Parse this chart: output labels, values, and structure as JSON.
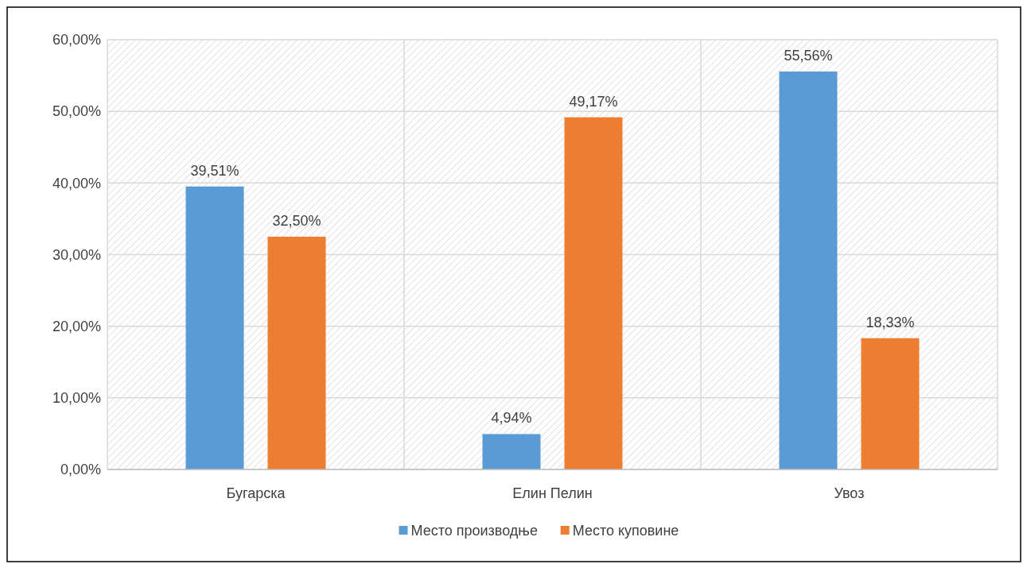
{
  "chart_data": {
    "type": "bar",
    "categories": [
      "Бугарска",
      "Елин Пелин",
      "Увоз"
    ],
    "series": [
      {
        "name": "Место производње",
        "color": "#5b9bd5",
        "values": [
          39.51,
          4.94,
          55.56
        ],
        "value_labels": [
          "39,51%",
          "4,94%",
          "55,56%"
        ]
      },
      {
        "name": "Место куповине",
        "color": "#ed7d31",
        "values": [
          32.5,
          49.17,
          18.33
        ],
        "value_labels": [
          "32,50%",
          "49,17%",
          "18,33%"
        ]
      }
    ],
    "ylim": [
      0,
      60
    ],
    "yticks": [
      {
        "value": 0,
        "label": "0,00%"
      },
      {
        "value": 10,
        "label": "10,00%"
      },
      {
        "value": 20,
        "label": "20,00%"
      },
      {
        "value": 30,
        "label": "30,00%"
      },
      {
        "value": 40,
        "label": "40,00%"
      },
      {
        "value": 50,
        "label": "50,00%"
      },
      {
        "value": 60,
        "label": "60,00%"
      }
    ],
    "grid": true,
    "legend": "bottom"
  }
}
